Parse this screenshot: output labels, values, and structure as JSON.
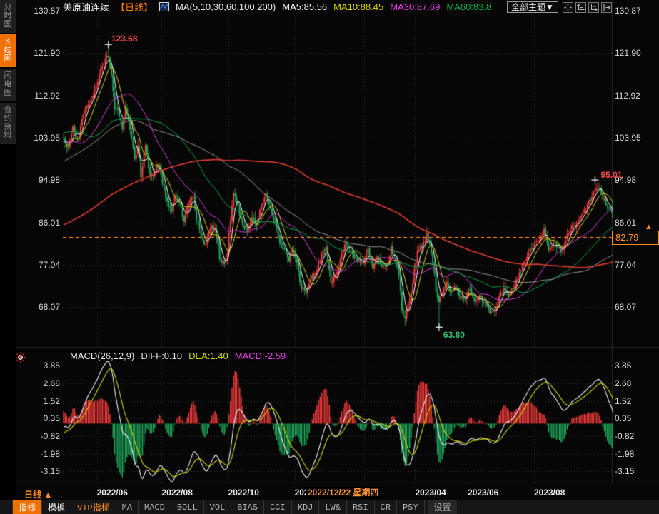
{
  "header": {
    "title": "美原油连续",
    "period_tag": "【日线】",
    "ma_params": "MA(5,10,30,60,100,200)",
    "ma_values": [
      {
        "label": "MA5:85.56",
        "color": "#f2f2f2"
      },
      {
        "label": "MA10:88.45",
        "color": "#d6d600"
      },
      {
        "label": "MA30:87.69",
        "color": "#e43ee4"
      },
      {
        "label": "MA60:83.8",
        "color": "#00b34a"
      }
    ],
    "theme_button": "全部主题▼",
    "mini_buttons": [
      "move-crosshair-icon",
      "axis-zoom-left-icon",
      "axis-zoom-right-icon",
      "collapse-right-icon"
    ]
  },
  "sidebar": {
    "tabs": [
      {
        "label": "分时图",
        "active": false
      },
      {
        "label": "K线图",
        "active": true
      },
      {
        "label": "闪电图",
        "active": false
      },
      {
        "label": "合约资料",
        "active": false
      }
    ]
  },
  "price_axis": {
    "ticks": [
      "130.87",
      "121.90",
      "112.92",
      "103.95",
      "94.98",
      "86.01",
      "77.04",
      "68.07"
    ]
  },
  "macd_axis": {
    "ticks": [
      "3.85",
      "2.68",
      "1.52",
      "0.35",
      "-0.82",
      "-1.98",
      "-3.15"
    ]
  },
  "x_axis": {
    "period_label": "日线 ▲",
    "date_box": "2022/12/22 星期四",
    "labels": [
      {
        "day": 22,
        "label": "2022/06"
      },
      {
        "day": 64,
        "label": "2022/08"
      },
      {
        "day": 107,
        "label": "2022/10"
      },
      {
        "day": 150,
        "label": "2022/12"
      },
      {
        "day": 195,
        "label": ""
      },
      {
        "day": 228,
        "label": "2023/04"
      },
      {
        "day": 262,
        "label": "2023/06"
      },
      {
        "day": 305,
        "label": "2023/08"
      }
    ]
  },
  "annotations": {
    "high1": {
      "text": "123.68",
      "day": 29,
      "price": 123.68
    },
    "low": {
      "text": "63.80",
      "day": 243,
      "price": 63.8
    },
    "high2": {
      "text": "95.01",
      "day": 344,
      "price": 95.01
    },
    "last_price": {
      "text": "82.79",
      "value": 82.79
    }
  },
  "macd_panel": {
    "legend_title": "MACD(26,12,9)",
    "diff_label": "DIFF:0.10",
    "dea_label": "DEA:1.40",
    "macd_label": "MACD:-2.59"
  },
  "toolbar": {
    "tabs": [
      {
        "label": "指标",
        "style": "active"
      },
      {
        "label": "模板",
        "style": "plain-white"
      },
      {
        "label": "VIP指标",
        "style": "orange"
      },
      {
        "label": "MA",
        "style": "plain"
      },
      {
        "label": "MACD",
        "style": "plain"
      },
      {
        "label": "BOLL",
        "style": "plain"
      },
      {
        "label": "VOL",
        "style": "plain"
      },
      {
        "label": "BIAS",
        "style": "plain"
      },
      {
        "label": "CCI",
        "style": "plain"
      },
      {
        "label": "KDJ",
        "style": "plain"
      },
      {
        "label": "LW&",
        "style": "plain"
      },
      {
        "label": "RSI",
        "style": "plain"
      },
      {
        "label": "CR",
        "style": "plain"
      },
      {
        "label": "PSY",
        "style": "plain"
      },
      {
        "label": "设置",
        "style": "settings"
      }
    ]
  },
  "chart_data": {
    "type": "candlestick+macd",
    "instrument": "美原油连续 (US crude oil continuous, WTI)",
    "interval": "daily (日线)",
    "num_days": 360,
    "y_ticks": [
      130.87,
      121.9,
      112.92,
      103.95,
      94.98,
      86.01,
      77.04,
      68.07
    ],
    "macd_ticks": [
      3.85,
      2.68,
      1.52,
      0.35,
      -0.82,
      -1.98,
      -3.15
    ],
    "key_points": {
      "high_2022": {
        "day": 29,
        "price": 123.68
      },
      "march_2023_low": {
        "day": 221,
        "price": 64.12
      },
      "low_2023": {
        "day": 243,
        "price": 63.8
      },
      "high_2023": {
        "day": 344,
        "price": 95.01
      },
      "last_close": 82.79
    },
    "ma_periods": [
      5,
      10,
      30,
      60,
      100,
      200
    ],
    "ma_colors": [
      "#ffffff",
      "#d6d600",
      "#e43ee4",
      "#00b34a",
      "#9a9a9a",
      "#e23b2e"
    ],
    "macd_params": [
      26,
      12,
      9
    ],
    "colors": {
      "up": "#ff3e3e",
      "down": "#21b262",
      "current_price_line": "#ff8c1e",
      "grid": "#343434"
    },
    "close_anchors": [
      [
        0,
        104
      ],
      [
        3,
        101.5
      ],
      [
        6,
        106
      ],
      [
        9,
        103
      ],
      [
        12,
        108
      ],
      [
        15,
        110.5
      ],
      [
        18,
        112
      ],
      [
        21,
        115
      ],
      [
        24,
        118.5
      ],
      [
        27,
        120.3
      ],
      [
        29,
        121.3
      ],
      [
        31,
        117.5
      ],
      [
        33,
        110
      ],
      [
        35,
        109.5
      ],
      [
        38,
        106
      ],
      [
        40,
        110
      ],
      [
        43,
        105.8
      ],
      [
        46,
        99
      ],
      [
        48,
        102.7
      ],
      [
        50,
        96
      ],
      [
        53,
        102.6
      ],
      [
        56,
        95.4
      ],
      [
        59,
        97
      ],
      [
        62,
        98.6
      ],
      [
        64,
        93.9
      ],
      [
        67,
        90.5
      ],
      [
        70,
        88.5
      ],
      [
        72,
        92.1
      ],
      [
        75,
        90
      ],
      [
        78,
        86.5
      ],
      [
        81,
        90
      ],
      [
        84,
        91.6
      ],
      [
        86,
        86.9
      ],
      [
        89,
        83
      ],
      [
        92,
        81.3
      ],
      [
        95,
        85.1
      ],
      [
        98,
        85
      ],
      [
        101,
        78.7
      ],
      [
        104,
        76.7
      ],
      [
        106,
        79.5
      ],
      [
        107,
        83.6
      ],
      [
        110,
        92.6
      ],
      [
        113,
        89
      ],
      [
        116,
        85.5
      ],
      [
        119,
        84.5
      ],
      [
        122,
        87.3
      ],
      [
        125,
        84.9
      ],
      [
        127,
        88.4
      ],
      [
        129,
        90
      ],
      [
        131,
        92
      ],
      [
        134,
        88.9
      ],
      [
        137,
        85.8
      ],
      [
        140,
        81.6
      ],
      [
        143,
        80.1
      ],
      [
        146,
        77.9
      ],
      [
        148,
        80.6
      ],
      [
        151,
        77.2
      ],
      [
        154,
        72
      ],
      [
        157,
        71
      ],
      [
        160,
        74.3
      ],
      [
        163,
        75.2
      ],
      [
        165,
        77.5
      ],
      [
        168,
        79.6
      ],
      [
        170,
        80.3
      ],
      [
        173,
        73.7
      ],
      [
        176,
        74.6
      ],
      [
        179,
        78.1
      ],
      [
        182,
        81.3
      ],
      [
        185,
        80.5
      ],
      [
        188,
        79
      ],
      [
        191,
        77.9
      ],
      [
        194,
        77.1
      ],
      [
        197,
        80.1
      ],
      [
        200,
        76.3
      ],
      [
        203,
        78.6
      ],
      [
        206,
        76.2
      ],
      [
        209,
        76.7
      ],
      [
        212,
        80.4
      ],
      [
        215,
        77.7
      ],
      [
        217,
        74.8
      ],
      [
        219,
        67.6
      ],
      [
        221,
        65.9
      ],
      [
        224,
        69.9
      ],
      [
        226,
        73.2
      ],
      [
        229,
        80.4
      ],
      [
        232,
        80.9
      ],
      [
        235,
        83.2
      ],
      [
        238,
        79.5
      ],
      [
        240,
        75
      ],
      [
        241,
        71.7
      ],
      [
        243,
        68.9
      ],
      [
        245,
        71
      ],
      [
        248,
        73.3
      ],
      [
        251,
        71.5
      ],
      [
        254,
        72.5
      ],
      [
        257,
        70
      ],
      [
        260,
        69.5
      ],
      [
        263,
        72.3
      ],
      [
        266,
        69.3
      ],
      [
        269,
        70.5
      ],
      [
        273,
        69
      ],
      [
        276,
        67.3
      ],
      [
        279,
        66.9
      ],
      [
        282,
        69.9
      ],
      [
        285,
        71.8
      ],
      [
        288,
        70
      ],
      [
        291,
        72.3
      ],
      [
        294,
        74.2
      ],
      [
        297,
        76.9
      ],
      [
        300,
        78.8
      ],
      [
        303,
        80.6
      ],
      [
        305,
        81.8
      ],
      [
        308,
        82.8
      ],
      [
        311,
        84.4
      ],
      [
        314,
        79.9
      ],
      [
        317,
        81.4
      ],
      [
        320,
        80.4
      ],
      [
        323,
        79.6
      ],
      [
        326,
        83.6
      ],
      [
        329,
        84.9
      ],
      [
        332,
        85.5
      ],
      [
        335,
        87.2
      ],
      [
        338,
        89
      ],
      [
        341,
        90.8
      ],
      [
        344,
        92.8
      ],
      [
        346,
        93.7
      ],
      [
        348,
        91.7
      ],
      [
        350,
        90.8
      ],
      [
        352,
        89.2
      ],
      [
        354,
        88.8
      ],
      [
        355,
        88.0
      ],
      [
        356,
        86.3
      ],
      [
        357,
        84.2
      ],
      [
        358,
        82.3
      ],
      [
        359,
        82.79
      ]
    ],
    "prehistory_anchors": [
      [
        -200,
        71
      ],
      [
        -180,
        68.5
      ],
      [
        -160,
        75
      ],
      [
        -140,
        66.2
      ],
      [
        -120,
        73
      ],
      [
        -100,
        83
      ],
      [
        -80,
        90
      ],
      [
        -60,
        95.5
      ],
      [
        -50,
        109
      ],
      [
        -45,
        122
      ],
      [
        -40,
        109
      ],
      [
        -35,
        102
      ],
      [
        -30,
        99
      ],
      [
        -25,
        104
      ],
      [
        -20,
        108
      ],
      [
        -15,
        102
      ],
      [
        -10,
        99.5
      ],
      [
        -5,
        101.5
      ]
    ]
  }
}
